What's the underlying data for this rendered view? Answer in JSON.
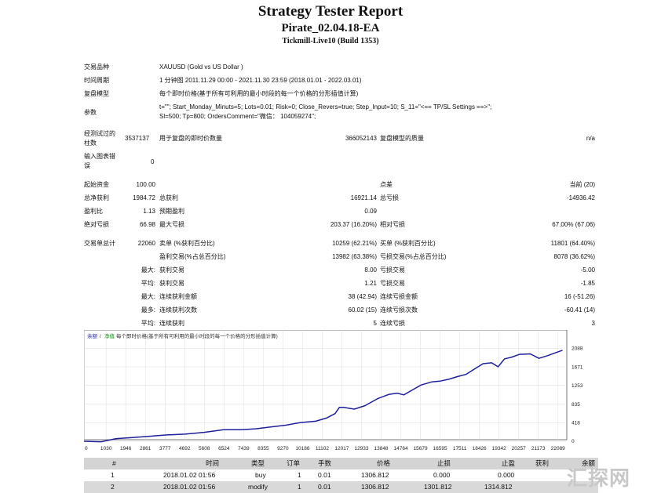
{
  "header": {
    "title": "Strategy Tester Report",
    "ea_name": "Pirate_02.04.18-EA",
    "server": "Tickmill-Live10 (Build 1353)"
  },
  "settings": [
    {
      "label": "交易品种",
      "value": "XAUUSD (Gold vs US Dollar )"
    },
    {
      "label": "时间周期",
      "value": "1 分钟图 2011.11.29 00:00 - 2021.11.30 23:59 (2018.01.01 - 2022.03.01)"
    },
    {
      "label": "复盘模型",
      "value": "每个即时价格(基于所有可利用的最小时段的每一个价格的分形插值计算)"
    },
    {
      "label": "参数",
      "value": "t=\"\"; Start_Monday_Minuts=5; Lots=0.01; Risk=0; Close_Revers=true; Step_Input=10; S_11=\"<== TP/SL Settings ==>\";",
      "value2": "Sl=500; Tp=800; OrdersComment=\"微信： 104059274\";"
    }
  ],
  "bars_tested": {
    "label_l1": "经测试过的",
    "label_l2": "柱数",
    "value": "3537137",
    "ticks_label": "用于复盘的即时价数量",
    "ticks_value": "366052143",
    "quality_label": "复盘模型的质量",
    "quality_value": "n/a"
  },
  "mismatch": {
    "label_l1": "输入图表错",
    "label_l2": "误",
    "value": "0"
  },
  "stats": {
    "initial_deposit_label": "起始资金",
    "initial_deposit": "100.00",
    "spread_label": "点差",
    "spread_value": "当前 (20)",
    "net_profit_label": "总净获利",
    "net_profit": "1984.72",
    "gross_profit_label": "总获利",
    "gross_profit": "16921.14",
    "gross_loss_label": "总亏损",
    "gross_loss": "-14936.42",
    "profit_factor_label": "盈利比",
    "profit_factor": "1.13",
    "expected_payoff_label": "预期盈利",
    "expected_payoff": "0.09",
    "abs_dd_label": "绝对亏损",
    "abs_dd": "66.98",
    "max_dd_label": "最大亏损",
    "max_dd": "203.37 (16.20%)",
    "rel_dd_label": "相对亏损",
    "rel_dd": "67.00% (67.06)",
    "total_trades_label": "交易单总计",
    "total_trades": "22060",
    "short_label": "卖单 (%获利百分比)",
    "short_value": "10259 (62.21%)",
    "long_label": "买单 (%获利百分比)",
    "long_value": "11801 (64.40%)",
    "profit_trades_label": "盈利交易(%占总百分比)",
    "profit_trades": "13982 (63.38%)",
    "loss_trades_label": "亏损交易(%占总百分比)",
    "loss_trades": "8078 (36.62%)",
    "largest_label": "最大:",
    "largest_profit_label": "获利交易",
    "largest_profit": "8.00",
    "largest_loss_label": "亏损交易",
    "largest_loss": "-5.00",
    "average_label": "平均:",
    "average_profit_label": "获利交易",
    "average_profit": "1.21",
    "average_loss_label": "亏损交易",
    "average_loss": "-1.85",
    "max_label": "最大:",
    "max_cons_wins_label": "连续获利金额",
    "max_cons_wins": "38 (42.94)",
    "max_cons_losses_label": "连续亏损金额",
    "max_cons_losses": "16 (-51.26)",
    "maximal_label": "最多:",
    "maximal_cons_profit_label": "连续获利次数",
    "maximal_cons_profit": "60.02 (15)",
    "maximal_cons_loss_label": "连续亏损次数",
    "maximal_cons_loss": "-60.41 (14)",
    "avg_cons_label": "平均:",
    "avg_cons_wins_label": "连续获利",
    "avg_cons_wins": "5",
    "avg_cons_losses_label": "连续亏损",
    "avg_cons_losses": "3"
  },
  "chart_data": {
    "type": "line",
    "legend_balance": "余额",
    "legend_equity": "净值",
    "legend_model": "每个即时价格(基于所有可利用的最小时段的每一个价格的分形插值计算)",
    "x_ticks": [
      "0",
      "1030",
      "1946",
      "2861",
      "3777",
      "4692",
      "5608",
      "6524",
      "7439",
      "8355",
      "9270",
      "10186",
      "11102",
      "12017",
      "12933",
      "13848",
      "14764",
      "15679",
      "16595",
      "17511",
      "18426",
      "19342",
      "20257",
      "21173",
      "22089"
    ],
    "y_ticks": [
      "2088",
      "1671",
      "1253",
      "835",
      "418",
      "0"
    ],
    "xlim": [
      0,
      22500
    ],
    "ylim": [
      0,
      2250
    ],
    "series": [
      {
        "color": "#1f1f9c",
        "x": [
          0,
          800,
          1500,
          2200,
          3000,
          3800,
          4700,
          5600,
          6500,
          7300,
          8000,
          8700,
          9400,
          10100,
          10800,
          11300,
          11700,
          11900,
          12100,
          12600,
          13100,
          13700,
          14200,
          14600,
          14900,
          15300,
          15700,
          16200,
          16600,
          17000,
          17400,
          17800,
          18200,
          18600,
          19000,
          19300,
          19600,
          19900,
          20300,
          20800,
          21200,
          21600,
          22000,
          22300
        ],
        "y": [
          0,
          -10,
          60,
          80,
          110,
          140,
          160,
          200,
          260,
          260,
          280,
          320,
          360,
          420,
          450,
          520,
          620,
          760,
          760,
          720,
          800,
          960,
          1050,
          1080,
          1040,
          1150,
          1260,
          1330,
          1350,
          1390,
          1450,
          1500,
          1620,
          1740,
          1760,
          1670,
          1850,
          1880,
          1950,
          1960,
          1860,
          1920,
          1990,
          2040
        ]
      }
    ]
  },
  "trades_table": {
    "headers": [
      "#",
      "时间",
      "类型",
      "订单",
      "手数",
      "价格",
      "止损",
      "止盈",
      "获利",
      "余额"
    ],
    "rows": [
      [
        "1",
        "2018.01.02 01:56",
        "buy",
        "1",
        "0.01",
        "1306.812",
        "0.000",
        "0.000",
        "",
        ""
      ],
      [
        "2",
        "2018.01.02 01:56",
        "modify",
        "1",
        "0.01",
        "1306.812",
        "1301.812",
        "1314.812",
        "",
        ""
      ]
    ]
  },
  "watermark": "汇探网"
}
